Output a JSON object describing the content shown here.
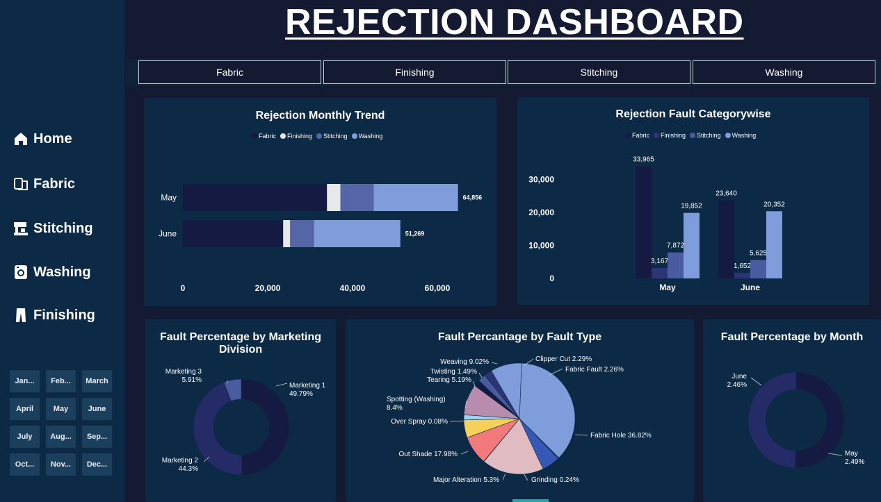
{
  "header": {
    "title": "REJECTION DASHBOARD"
  },
  "sidebar": {
    "nav": [
      {
        "label": "Home",
        "icon": "home-icon"
      },
      {
        "label": "Fabric",
        "icon": "fabric-icon"
      },
      {
        "label": "Stitching",
        "icon": "sewing-machine-icon"
      },
      {
        "label": "Washing",
        "icon": "washing-machine-icon"
      },
      {
        "label": "Finishing",
        "icon": "trousers-icon"
      }
    ],
    "months": [
      "Jan...",
      "Feb...",
      "March",
      "April",
      "May",
      "June",
      "July",
      "Aug...",
      "Sep...",
      "Oct...",
      "Nov...",
      "Dec..."
    ]
  },
  "tabs": [
    "Fabric",
    "Finishing",
    "Stitching",
    "Washing"
  ],
  "colors": {
    "Fabric": "#141a42",
    "Finishing": "#e6e8ea",
    "Stitching": "#5565a8",
    "Washing": "#7f9ddb"
  },
  "chart_data": [
    {
      "id": "monthly_trend",
      "type": "bar",
      "orientation": "horizontal",
      "stacked": true,
      "title": "Rejection Monthly Trend",
      "legend": [
        "Fabric",
        "Finishing",
        "Stitching",
        "Washing"
      ],
      "legend_colors": [
        "#141a42",
        "#e6e8ea",
        "#5565a8",
        "#7f9ddb"
      ],
      "categories": [
        "May",
        "June"
      ],
      "series": [
        {
          "name": "Fabric",
          "values": [
            33965,
            23640
          ]
        },
        {
          "name": "Finishing",
          "values": [
            3167,
            1652
          ]
        },
        {
          "name": "Stitching",
          "values": [
            7872,
            5625
          ]
        },
        {
          "name": "Washing",
          "values": [
            19852,
            20352
          ]
        }
      ],
      "totals": [
        "64,856",
        "51,269"
      ],
      "xlim": [
        0,
        70000
      ],
      "xticks": [
        "0",
        "20,000",
        "40,000",
        "60,000"
      ],
      "xtick_values": [
        0,
        20000,
        40000,
        60000
      ]
    },
    {
      "id": "fault_categorywise",
      "type": "bar",
      "orientation": "vertical",
      "title": "Rejection Fault Categorywise",
      "legend": [
        "Fabric",
        "Finishing",
        "Stitching",
        "Washing"
      ],
      "legend_colors": [
        "#141a42",
        "#2b3576",
        "#4a5ba0",
        "#7f9ddb"
      ],
      "categories": [
        "May",
        "June"
      ],
      "series": [
        {
          "name": "Fabric",
          "values": [
            33965,
            23640
          ],
          "labels": [
            "33,965",
            "23,640"
          ]
        },
        {
          "name": "Finishing",
          "values": [
            3167,
            1652
          ],
          "labels": [
            "3,167",
            "1,652"
          ]
        },
        {
          "name": "Stitching",
          "values": [
            7872,
            5625
          ],
          "labels": [
            "7,872",
            "5,625"
          ]
        },
        {
          "name": "Washing",
          "values": [
            19852,
            20352
          ],
          "labels": [
            "19,852",
            "20,352"
          ]
        }
      ],
      "ylim": [
        0,
        34500
      ],
      "yticks": [
        "0",
        "10,000",
        "20,000",
        "30,000"
      ],
      "ytick_values": [
        0,
        10000,
        20000,
        30000
      ]
    },
    {
      "id": "marketing_division",
      "type": "pie",
      "donut": true,
      "title": "Fault Percentage by Marketing Division",
      "slices": [
        {
          "label": "Marketing 1",
          "pct": "49.79%",
          "value": 49.79,
          "color": "#141a42"
        },
        {
          "label": "Marketing 2",
          "pct": "44.3%",
          "value": 44.3,
          "color": "#252b66"
        },
        {
          "label": "Marketing 3",
          "pct": "5.91%",
          "value": 5.91,
          "color": "#4a5ba0"
        }
      ]
    },
    {
      "id": "fault_type",
      "type": "pie",
      "title": "Fault Percantage by Fault Type",
      "slices": [
        {
          "label": "Fabric Hole 36.82%",
          "value": 36.82,
          "color": "#7f9ddb"
        },
        {
          "label": "Grinding 0.24%",
          "value": 0.24,
          "color": "#1e2456"
        },
        {
          "label": "Major Alteration 5.3%",
          "value": 5.3,
          "color": "#3559b5"
        },
        {
          "label": "Out Shade 17.98%",
          "value": 17.98,
          "color": "#e0bcc2"
        },
        {
          "label": "Over Spray 0.08%",
          "value": 0.08,
          "color": "#7d8a99"
        },
        {
          "label": "Spotting (Washing)\n8.4%",
          "value": 8.4,
          "color": "#f37a7c"
        },
        {
          "label": "Tearing 5.19%",
          "value": 5.19,
          "color": "#f5d05a"
        },
        {
          "label": "Twisting 1.49%",
          "value": 1.49,
          "color": "#9ed3ef"
        },
        {
          "label": "Weaving 9.02%",
          "value": 9.02,
          "color": "#b88caf"
        },
        {
          "label": "",
          "value": 1.85,
          "color": "#141a42"
        },
        {
          "label": "Clipper Cut 2.29%",
          "value": 2.29,
          "color": "#4a5ba0"
        },
        {
          "label": "Fabric Fault 2.26%",
          "value": 2.26,
          "color": "#2b3576"
        },
        {
          "label": "",
          "value": 9.08,
          "color": "#7f9ddb"
        }
      ]
    },
    {
      "id": "by_month",
      "type": "pie",
      "donut": true,
      "title": "Fault Percentage by Month",
      "slices": [
        {
          "label": "May",
          "pct": "2.49%",
          "value": 2.49,
          "color": "#141a42"
        },
        {
          "label": "June",
          "pct": "2.46%",
          "value": 2.46,
          "color": "#252b66"
        }
      ]
    }
  ]
}
